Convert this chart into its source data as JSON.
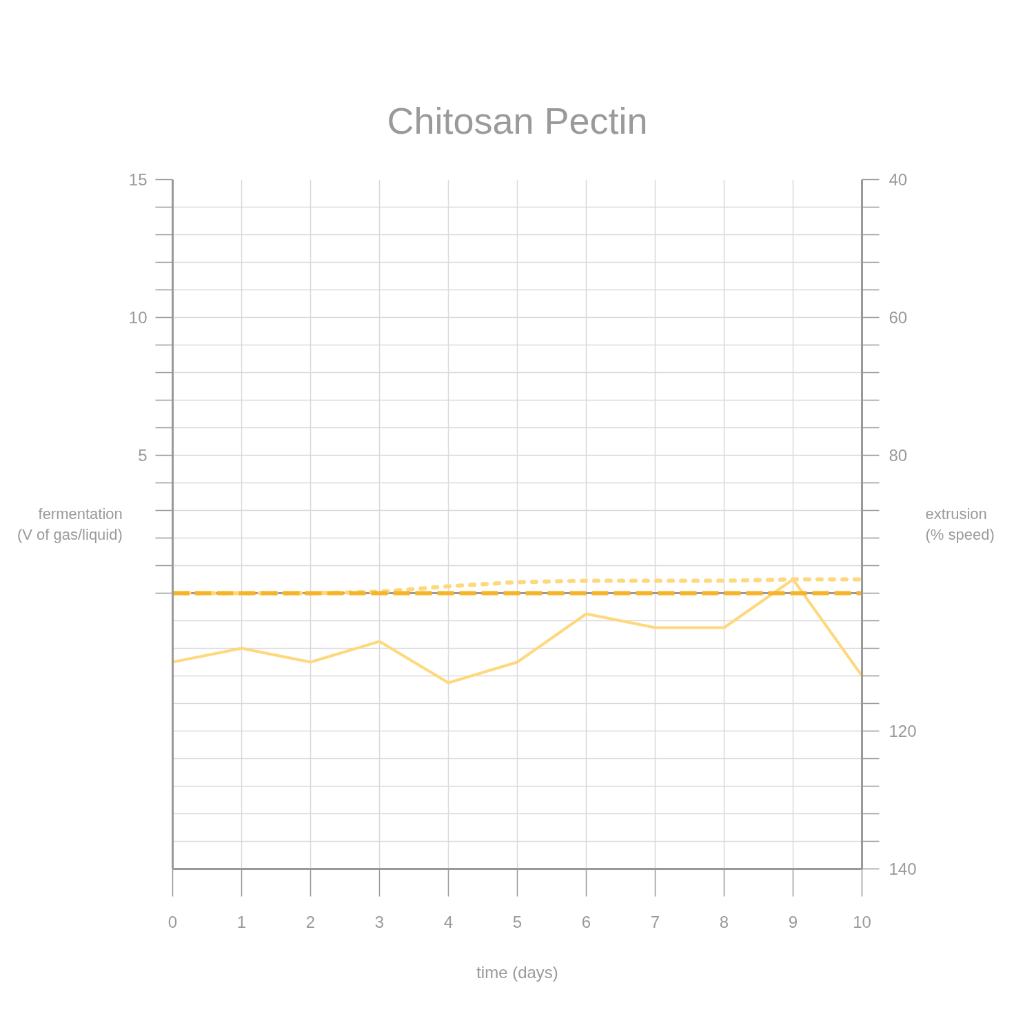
{
  "chart_data": {
    "type": "line",
    "title": "Chitosan Pectin",
    "xlabel": "time (days)",
    "ylabel": "fermentation\n(V of gas/liquid)",
    "y2label": "extrusion\n(% speed)",
    "x": [
      0,
      1,
      2,
      3,
      4,
      5,
      6,
      7,
      8,
      9,
      10
    ],
    "xlim": [
      0,
      10
    ],
    "xticks": [
      0,
      1,
      2,
      3,
      4,
      5,
      6,
      7,
      8,
      9,
      10
    ],
    "ylim": [
      -10,
      15
    ],
    "yticks": [
      {
        "value": 0,
        "label": null
      },
      {
        "value": 1,
        "label": null
      },
      {
        "value": 2,
        "label": null
      },
      {
        "value": 3,
        "label": null
      },
      {
        "value": 4,
        "label": null
      },
      5,
      {
        "value": 6,
        "label": null
      },
      {
        "value": 7,
        "label": null
      },
      {
        "value": 8,
        "label": null
      },
      {
        "value": 9,
        "label": null
      },
      10,
      {
        "value": 11,
        "label": null
      },
      {
        "value": 12,
        "label": null
      },
      {
        "value": 13,
        "label": null
      },
      {
        "value": 14,
        "label": null
      },
      15
    ],
    "y2lim": [
      140,
      40
    ],
    "y2ticks": [
      40,
      {
        "value": 44,
        "label": null
      },
      {
        "value": 48,
        "label": null
      },
      {
        "value": 52,
        "label": null
      },
      {
        "value": 56,
        "label": null
      },
      60,
      {
        "value": 64,
        "label": null
      },
      {
        "value": 68,
        "label": null
      },
      {
        "value": 72,
        "label": null
      },
      {
        "value": 76,
        "label": null
      },
      80,
      {
        "value": 84,
        "label": null
      },
      {
        "value": 88,
        "label": null
      },
      {
        "value": 92,
        "label": null
      },
      {
        "value": 96,
        "label": null
      },
      {
        "value": 100,
        "label": null
      },
      {
        "value": 104,
        "label": null
      },
      {
        "value": 108,
        "label": null
      },
      {
        "value": 112,
        "label": null
      },
      {
        "value": 116,
        "label": null
      },
      120,
      {
        "value": 124,
        "label": null
      },
      {
        "value": 128,
        "label": null
      },
      {
        "value": 132,
        "label": null
      },
      {
        "value": 136,
        "label": null
      },
      140
    ],
    "grid": true,
    "ref_lines": [
      {
        "axis": "y",
        "value": 0,
        "color": "#999999"
      }
    ],
    "series": [
      {
        "color": "#fed87c",
        "line_style": "solid",
        "axis": "y2",
        "values": [
          110,
          108,
          110,
          107,
          113,
          110,
          103,
          105,
          105,
          98,
          112
        ]
      },
      {
        "color": "#fed87c",
        "line_style": "dotted",
        "values": [
          0,
          0,
          0,
          0.05,
          0.25,
          0.4,
          0.45,
          0.45,
          0.45,
          0.5,
          0.5
        ]
      },
      {
        "color": "#f6b528",
        "line_style": "dashed",
        "values": [
          0,
          0,
          0,
          0,
          0,
          0,
          0,
          0,
          0,
          0,
          0
        ]
      }
    ]
  }
}
